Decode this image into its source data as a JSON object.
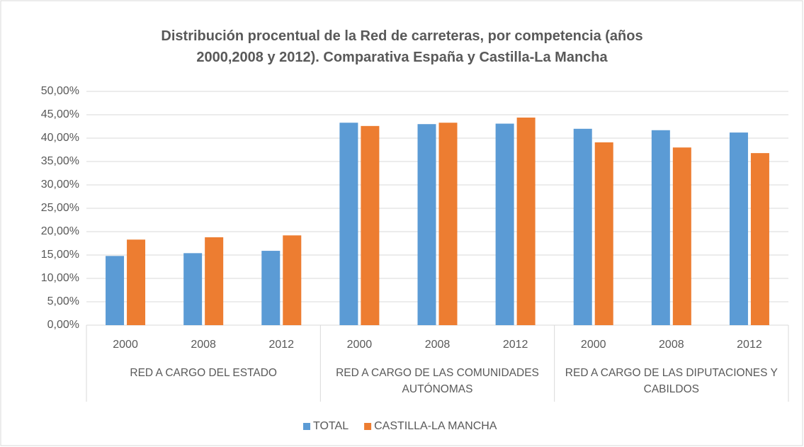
{
  "chart_data": {
    "type": "bar",
    "title": "Distribución procentual de la Red de carreteras, por competencia (años 2000,2008 y 2012). Comparativa España y Castilla-La Mancha",
    "categories": [
      "2000",
      "2008",
      "2012",
      "2000",
      "2008",
      "2012",
      "2000",
      "2008",
      "2012"
    ],
    "groups": [
      "RED A CARGO DEL ESTADO",
      "RED A CARGO DE LAS COMUNIDADES AUTÓNOMAS",
      "RED A CARGO DE LAS DIPUTACIONES Y CABILDOS"
    ],
    "series": [
      {
        "name": "TOTAL",
        "color": "#5b9bd5",
        "values": [
          14.8,
          15.4,
          15.9,
          43.3,
          43.0,
          43.1,
          42.0,
          41.7,
          41.2
        ]
      },
      {
        "name": "CASTILLA-LA MANCHA",
        "color": "#ed7d31",
        "values": [
          18.3,
          18.8,
          19.2,
          42.6,
          43.3,
          44.4,
          39.1,
          38.0,
          36.8
        ]
      }
    ],
    "ylim": [
      0,
      50
    ],
    "yticks": [
      {
        "value": 0,
        "label": "0,00%"
      },
      {
        "value": 5,
        "label": "5,00%"
      },
      {
        "value": 10,
        "label": "10,00%"
      },
      {
        "value": 15,
        "label": "15,00%"
      },
      {
        "value": 20,
        "label": "20,00%"
      },
      {
        "value": 25,
        "label": "25,00%"
      },
      {
        "value": 30,
        "label": "30,00%"
      },
      {
        "value": 35,
        "label": "35,00%"
      },
      {
        "value": 40,
        "label": "40,00%"
      },
      {
        "value": 45,
        "label": "45,00%"
      },
      {
        "value": 50,
        "label": "50,00%"
      }
    ],
    "grid": true,
    "legend": "bottom"
  }
}
